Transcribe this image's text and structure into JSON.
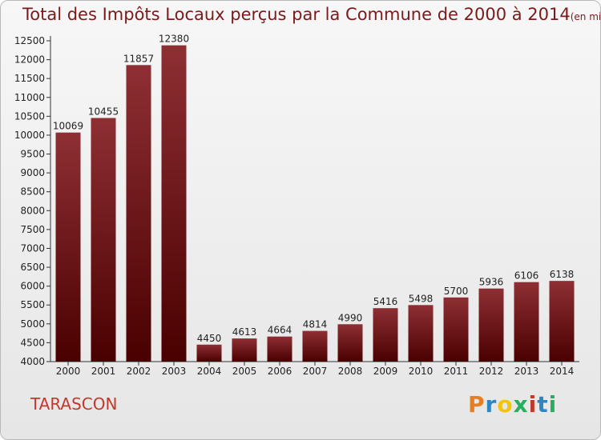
{
  "title": "Total des Impôts Locaux perçus par la Commune de 2000 à 2014",
  "title_unit": "(en milliers d'€)",
  "commune": "TARASCON",
  "logo": {
    "letters": [
      "P",
      "r",
      "o",
      "x",
      "i",
      "t",
      "i"
    ],
    "colors": [
      "#e67e22",
      "#2e86c1",
      "#f1c40f",
      "#27ae60",
      "#c0392b",
      "#2e86c1",
      "#27ae60"
    ]
  },
  "colors": {
    "bar_top": "#8e2f34",
    "bar_bottom": "#4a0000",
    "title": "#7a1a1a",
    "commune": "#c0392b"
  },
  "chart_data": {
    "type": "bar",
    "title": "Total des Impôts Locaux perçus par la Commune de 2000 à 2014",
    "categories": [
      "2000",
      "2001",
      "2002",
      "2003",
      "2004",
      "2005",
      "2006",
      "2007",
      "2008",
      "2009",
      "2010",
      "2011",
      "2012",
      "2013",
      "2014"
    ],
    "values": [
      10069,
      10455,
      11857,
      12380,
      4450,
      4613,
      4664,
      4814,
      4990,
      5416,
      5498,
      5700,
      5936,
      6106,
      6138
    ],
    "ylim": [
      4000,
      12500
    ],
    "ytick_step": 500,
    "grid": false
  }
}
